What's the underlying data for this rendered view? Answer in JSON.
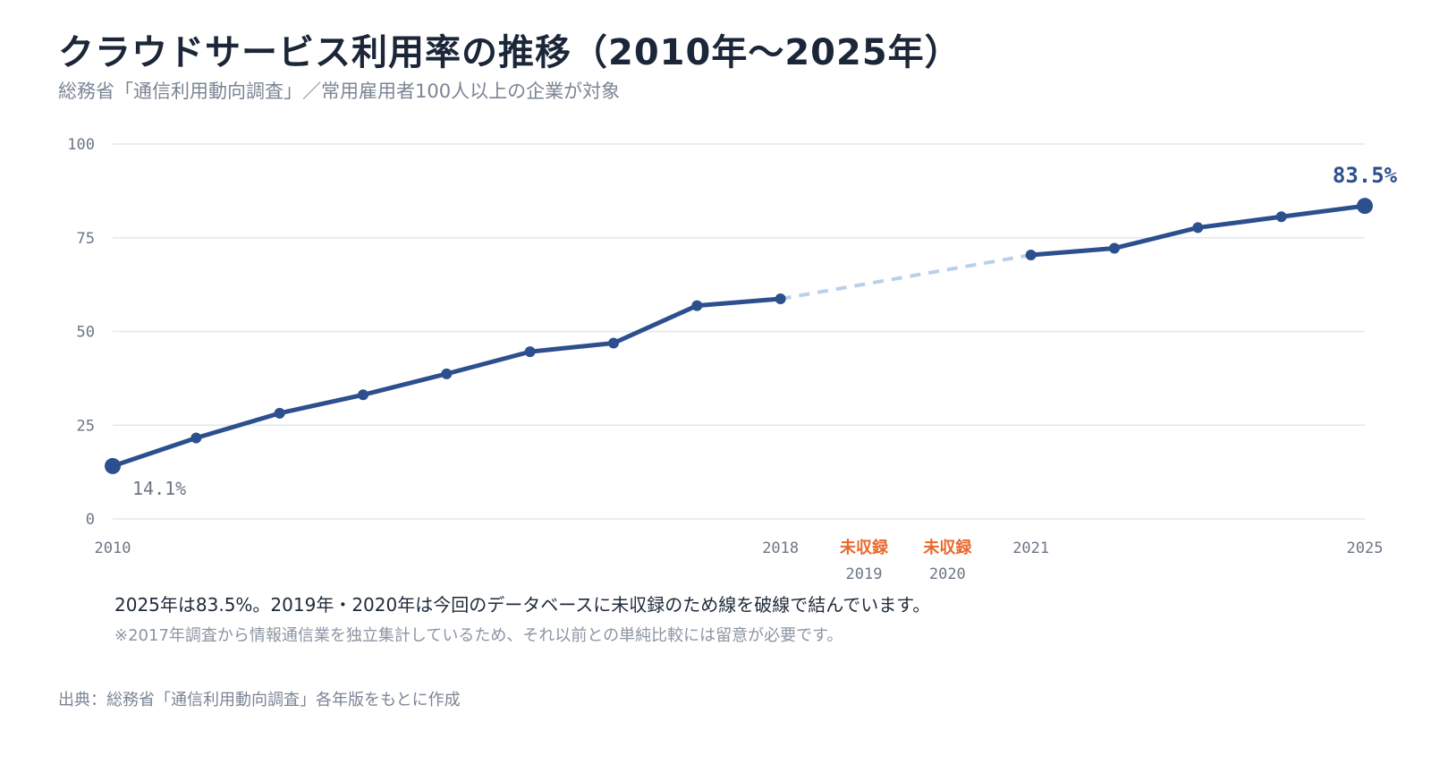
{
  "header": {
    "title": "クラウドサービス利用率の推移（2010年〜2025年）",
    "subtitle": "総務省「通信利用動向調査」／常用雇用者100人以上の企業が対象"
  },
  "chart_data": {
    "type": "line",
    "title": "クラウドサービス利用率の推移（2010年〜2025年）",
    "subtitle": "総務省「通信利用動向調査」／常用雇用者100人以上の企業が対象",
    "xlabel": "",
    "ylabel": "",
    "xlim": [
      2010,
      2025
    ],
    "ylim": [
      0,
      100
    ],
    "y_ticks": [
      0,
      25,
      50,
      75,
      100
    ],
    "x_tick_labels": [
      "2010",
      "2018",
      "2021",
      "2025"
    ],
    "grid": true,
    "legend": "none",
    "series": [
      {
        "x": [
          2010,
          2011,
          2012,
          2013,
          2014,
          2015,
          2016,
          2017,
          2018,
          2021,
          2022,
          2023,
          2024,
          2025
        ],
        "values": [
          14.1,
          21.6,
          28.2,
          33.1,
          38.7,
          44.6,
          46.9,
          56.9,
          58.7,
          70.4,
          72.2,
          77.7,
          80.6,
          83.5
        ]
      }
    ],
    "missing": [
      {
        "year": "2019",
        "label": "未収録"
      },
      {
        "year": "2020",
        "label": "未収録"
      }
    ],
    "annotations": {
      "start_label": "14.1%",
      "end_label": "83.5%"
    },
    "colors": {
      "line": "#2c4f8e",
      "gap_line": "#b9d0ea",
      "grid": "#e3e7ee",
      "axis_text": "#6b7685",
      "missing": "#e8692c"
    }
  },
  "notes": {
    "main": "2025年は83.5%。2019年・2020年は今回のデータベースに未収録のため線を破線で結んでいます。",
    "sub": "※2017年調査から情報通信業を独立集計しているため、それ以前との単純比較には留意が必要です。"
  },
  "source": "出典：総務省「通信利用動向調査」各年版をもとに作成"
}
